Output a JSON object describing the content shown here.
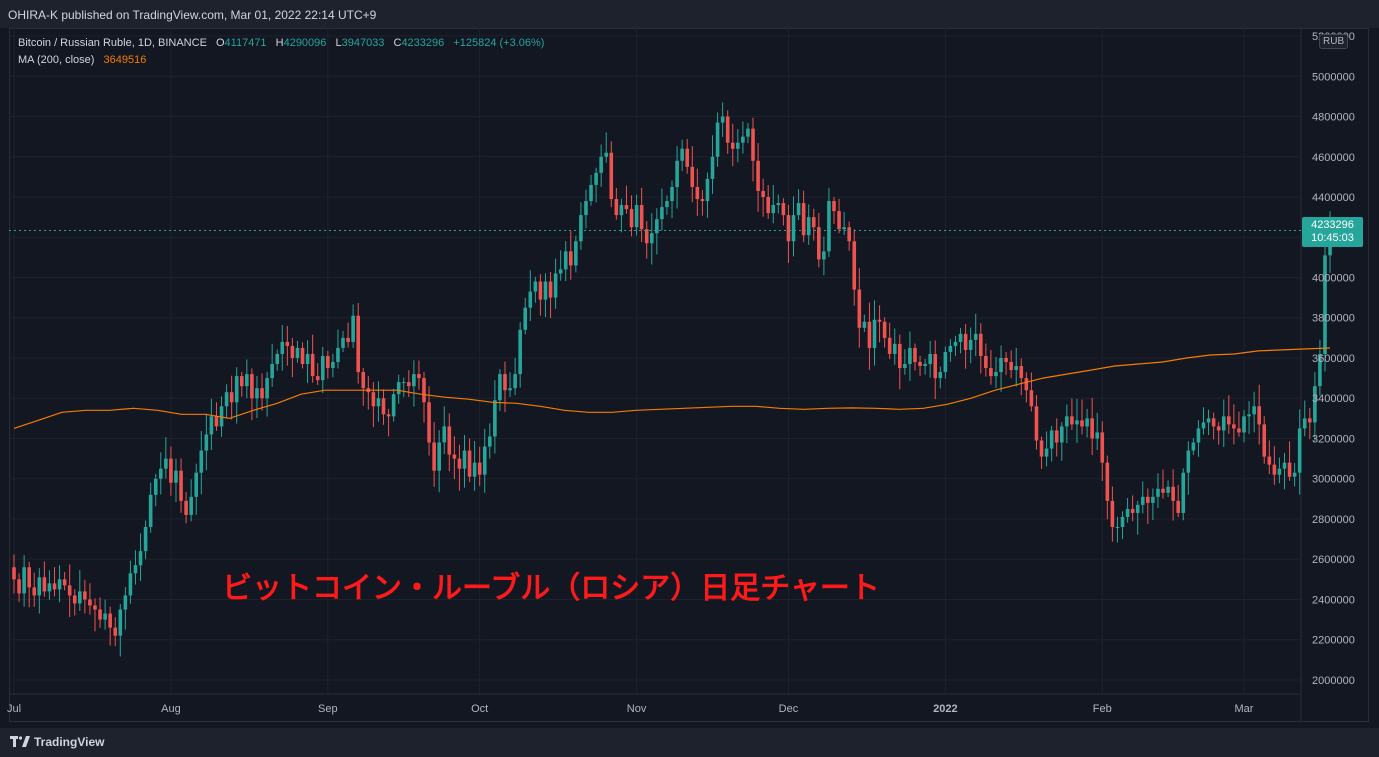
{
  "header": {
    "publish_line": "OHIRA-K published on TradingView.com, Mar 01, 2022 22:14 UTC+9"
  },
  "legend": {
    "symbol": "Bitcoin / Russian Ruble, 1D, BINANCE",
    "o_label": "O",
    "o_value": "4117471",
    "h_label": "H",
    "h_value": "4290096",
    "l_label": "L",
    "l_value": "3947033",
    "c_label": "C",
    "c_value": "4233296",
    "change": "+125824 (+3.06%)",
    "ma_label": "MA (200, close)",
    "ma_value": "3649516"
  },
  "price_axis": {
    "currency": "RUB",
    "last_price": "4233296",
    "countdown": "10:45:03"
  },
  "annotation": {
    "text": "ビットコイン・ルーブル（ロシア）日足チャート"
  },
  "footer": {
    "brand": "TradingView"
  },
  "colors": {
    "background": "#131722",
    "up": "#26a69a",
    "down": "#ef5350",
    "ma": "#f57c00",
    "annotation": "#ff1a1a"
  },
  "chart_data": {
    "type": "candlestick",
    "y_ticks": [
      "5200000",
      "5000000",
      "4800000",
      "4600000",
      "4400000",
      "4200000",
      "4000000",
      "3800000",
      "3600000",
      "3400000",
      "3200000",
      "3000000",
      "2800000",
      "2600000",
      "2400000",
      "2200000",
      "2000000"
    ],
    "ylim": [
      1950000,
      5230000
    ],
    "x_ticks": [
      {
        "label": "Jul",
        "day": 0
      },
      {
        "label": "Aug",
        "day": 31
      },
      {
        "label": "Sep",
        "day": 62
      },
      {
        "label": "Oct",
        "day": 92
      },
      {
        "label": "Nov",
        "day": 123
      },
      {
        "label": "Dec",
        "day": 153
      },
      {
        "label": "2022",
        "day": 184
      },
      {
        "label": "Feb",
        "day": 215
      },
      {
        "label": "Mar",
        "day": 243
      }
    ],
    "close": [
      2500000,
      2430000,
      2560000,
      2460000,
      2420000,
      2510000,
      2440000,
      2480000,
      2450000,
      2500000,
      2470000,
      2420000,
      2380000,
      2440000,
      2400000,
      2370000,
      2350000,
      2300000,
      2330000,
      2260000,
      2220000,
      2350000,
      2420000,
      2530000,
      2570000,
      2640000,
      2760000,
      2920000,
      3000000,
      3050000,
      3100000,
      2980000,
      3040000,
      2890000,
      2820000,
      2910000,
      3030000,
      3140000,
      3220000,
      3310000,
      3260000,
      3360000,
      3430000,
      3380000,
      3510000,
      3460000,
      3520000,
      3400000,
      3450000,
      3400000,
      3500000,
      3570000,
      3620000,
      3680000,
      3660000,
      3600000,
      3650000,
      3570000,
      3620000,
      3510000,
      3490000,
      3610000,
      3550000,
      3580000,
      3650000,
      3700000,
      3680000,
      3810000,
      3530000,
      3450000,
      3430000,
      3360000,
      3400000,
      3320000,
      3310000,
      3420000,
      3480000,
      3480000,
      3460000,
      3520000,
      3500000,
      3380000,
      3180000,
      3040000,
      3180000,
      3260000,
      3120000,
      3100000,
      3050000,
      3140000,
      3010000,
      3080000,
      3020000,
      3160000,
      3210000,
      3390000,
      3520000,
      3440000,
      3450000,
      3520000,
      3740000,
      3850000,
      3930000,
      3980000,
      3890000,
      3980000,
      3900000,
      4020000,
      4040000,
      4130000,
      4060000,
      4180000,
      4310000,
      4380000,
      4460000,
      4520000,
      4600000,
      4620000,
      4390000,
      4310000,
      4360000,
      4340000,
      4250000,
      4360000,
      4240000,
      4170000,
      4220000,
      4290000,
      4350000,
      4380000,
      4450000,
      4580000,
      4640000,
      4550000,
      4450000,
      4390000,
      4380000,
      4490000,
      4600000,
      4770000,
      4800000,
      4670000,
      4640000,
      4670000,
      4700000,
      4740000,
      4580000,
      4430000,
      4400000,
      4320000,
      4360000,
      4370000,
      4310000,
      4180000,
      4310000,
      4370000,
      4210000,
      4300000,
      4250000,
      4090000,
      4130000,
      4380000,
      4330000,
      4240000,
      4250000,
      4180000,
      3940000,
      3750000,
      3780000,
      3650000,
      3790000,
      3780000,
      3700000,
      3620000,
      3670000,
      3550000,
      3570000,
      3650000,
      3580000,
      3560000,
      3570000,
      3620000,
      3500000,
      3530000,
      3630000,
      3660000,
      3680000,
      3720000,
      3640000,
      3690000,
      3720000,
      3610000,
      3550000,
      3510000,
      3530000,
      3600000,
      3580000,
      3540000,
      3560000,
      3500000,
      3440000,
      3360000,
      3190000,
      3110000,
      3150000,
      3240000,
      3180000,
      3260000,
      3310000,
      3270000,
      3290000,
      3260000,
      3300000,
      3200000,
      3230000,
      3080000,
      2890000,
      2760000,
      2760000,
      2810000,
      2850000,
      2830000,
      2870000,
      2910000,
      2880000,
      2910000,
      2950000,
      2930000,
      2960000,
      2890000,
      2830000,
      3030000,
      3140000,
      3180000,
      3250000,
      3280000,
      3300000,
      3260000,
      3240000,
      3310000,
      3270000,
      3250000,
      3230000,
      3310000,
      3320000,
      3360000,
      3270000,
      3110000,
      3070000,
      3020000,
      3050000,
      3080000,
      3010000,
      3030000,
      3250000,
      3300000,
      3280000,
      3460000,
      3620000,
      4110000,
      4233296
    ],
    "ma200": [
      3250000,
      3290000,
      3330000,
      3340000,
      3340000,
      3350000,
      3340000,
      3320000,
      3320000,
      3300000,
      3340000,
      3375000,
      3420000,
      3440000,
      3440000,
      3440000,
      3440000,
      3420000,
      3405000,
      3395000,
      3380000,
      3375000,
      3360000,
      3340000,
      3330000,
      3330000,
      3340000,
      3345000,
      3350000,
      3355000,
      3360000,
      3360000,
      3350000,
      3345000,
      3350000,
      3352000,
      3350000,
      3345000,
      3350000,
      3370000,
      3400000,
      3440000,
      3470000,
      3500000,
      3520000,
      3540000,
      3560000,
      3570000,
      3580000,
      3600000,
      3615000,
      3620000,
      3635000,
      3640000,
      3645000,
      3649516
    ]
  }
}
